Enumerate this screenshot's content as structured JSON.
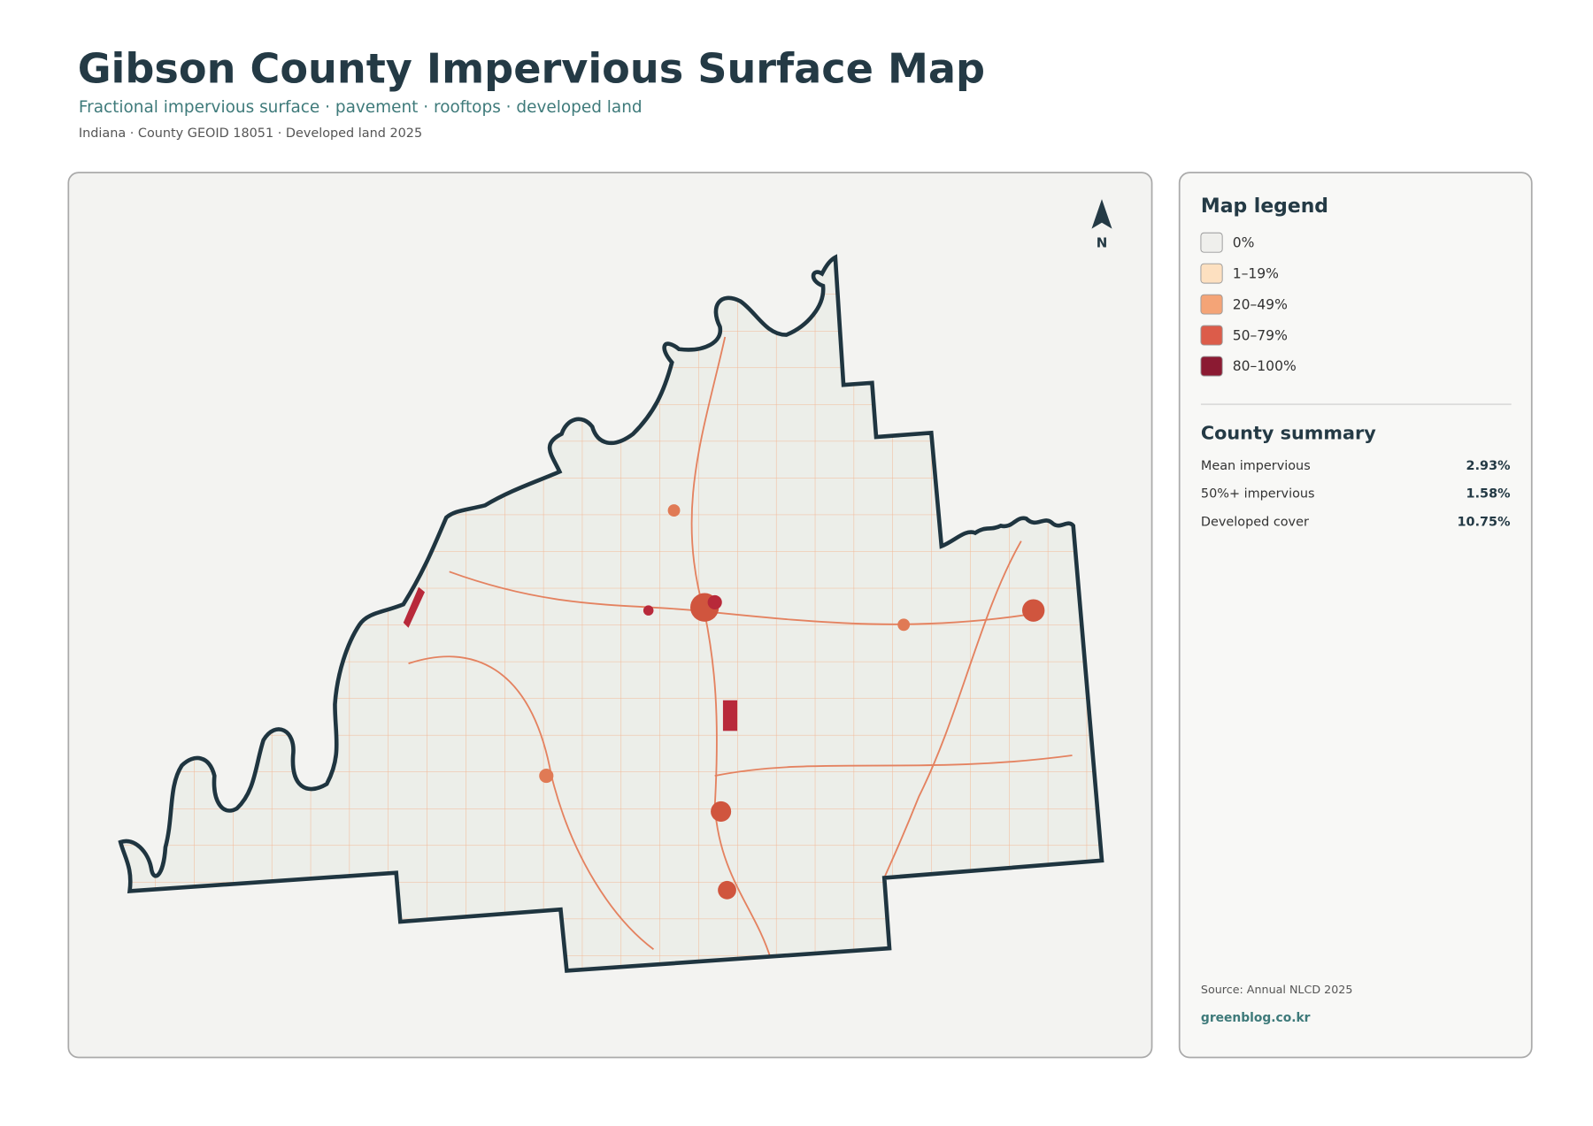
{
  "header": {
    "title": "Gibson County Impervious Surface Map",
    "subtitle": "Fractional impervious surface · pavement · rooftops · developed land",
    "meta": "Indiana · County GEOID 18051 · Developed land 2025"
  },
  "map": {
    "north": "N"
  },
  "legend": {
    "title": "Map legend",
    "items": [
      {
        "label": "0%",
        "color": "#efefec"
      },
      {
        "label": "1–19%",
        "color": "#fde0c0"
      },
      {
        "label": "20–49%",
        "color": "#f4a477"
      },
      {
        "label": "50–79%",
        "color": "#dc5c4a"
      },
      {
        "label": "80–100%",
        "color": "#8b1a32"
      }
    ]
  },
  "summary": {
    "title": "County summary",
    "rows": [
      {
        "label": "Mean impervious",
        "value": "2.93%"
      },
      {
        "label": "50%+ impervious",
        "value": "1.58%"
      },
      {
        "label": "Developed cover",
        "value": "10.75%"
      }
    ]
  },
  "footer": {
    "source": "Source: Annual NLCD 2025",
    "credit": "greenblog.co.kr"
  }
}
